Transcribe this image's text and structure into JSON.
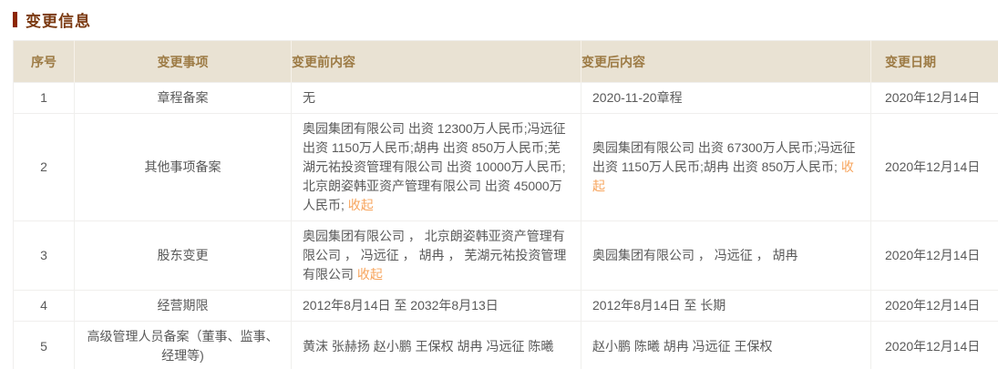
{
  "section": {
    "title": "变更信息"
  },
  "colors": {
    "title_text": "#7b3a12",
    "title_accent_bar": "#8c2600",
    "header_background": "#e9e2d3",
    "header_text": "#9d7b45",
    "body_text": "#5a5a5a",
    "table_border": "#f0efed",
    "collapse_link": "#f7a45c"
  },
  "table": {
    "headers": [
      "序号",
      "变更事项",
      "变更前内容",
      "变更后内容",
      "变更日期"
    ],
    "rows": [
      {
        "no": "1",
        "item": "章程备案",
        "before": {
          "text": "无"
        },
        "after": {
          "text": "2020-11-20章程"
        },
        "date": "2020年12月14日"
      },
      {
        "no": "2",
        "item": "其他事项备案",
        "before": {
          "text": "奥园集团有限公司 出资 12300万人民币;冯远征 出资 1150万人民币;胡冉 出资 850万人民币;芜湖元祐投资管理有限公司 出资 10000万人民币;北京朗姿韩亚资产管理有限公司 出资 45000万人民币;",
          "link": "收起"
        },
        "after": {
          "text": "奥园集团有限公司 出资 67300万人民币;冯远征 出资 1150万人民币;胡冉 出资 850万人民币;",
          "link": "收起"
        },
        "date": "2020年12月14日"
      },
      {
        "no": "3",
        "item": "股东变更",
        "before": {
          "text": "奥园集团有限公司 ， 北京朗姿韩亚资产管理有限公司 ， 冯远征 ， 胡冉 ， 芜湖元祐投资管理有限公司",
          "link": "收起"
        },
        "after": {
          "text": "奥园集团有限公司 ， 冯远征 ， 胡冉"
        },
        "date": "2020年12月14日"
      },
      {
        "no": "4",
        "item": "经营期限",
        "before": {
          "text": "2012年8月14日 至 2032年8月13日"
        },
        "after": {
          "text": "2012年8月14日 至 长期"
        },
        "date": "2020年12月14日"
      },
      {
        "no": "5",
        "item": "高级管理人员备案（董事、监事、经理等)",
        "before": {
          "text": "黄沫 张赫扬 赵小鹏 王保权 胡冉 冯远征 陈曦"
        },
        "after": {
          "text": "赵小鹏 陈曦 胡冉 冯远征 王保权"
        },
        "date": "2020年12月14日"
      }
    ]
  }
}
